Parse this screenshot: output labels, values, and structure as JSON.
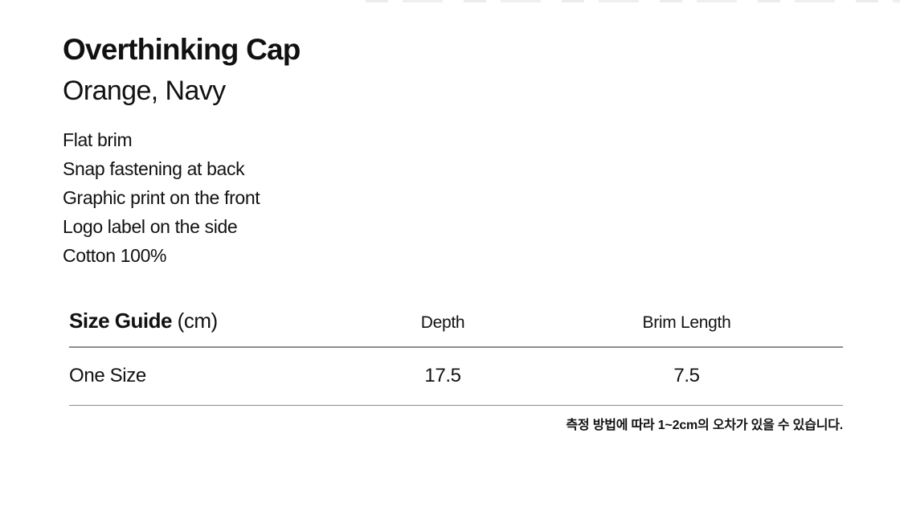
{
  "page": {
    "background_color": "#ffffff",
    "text_color": "#111111",
    "divider_color": "#8e8e8e"
  },
  "product": {
    "title": "Overthinking Cap",
    "colorway": "Orange, Navy",
    "features": [
      "Flat brim",
      "Snap fastening at back",
      "Graphic print on the front",
      "Logo label on the side",
      "Cotton 100%"
    ]
  },
  "size_guide": {
    "title": "Size Guide",
    "unit": "(cm)",
    "columns": [
      "Depth",
      "Brim Length"
    ],
    "rows": [
      {
        "label": "One Size",
        "depth": "17.5",
        "brim_length": "7.5"
      }
    ],
    "note": "측정 방법에 따라 1~2cm의 오차가 있을 수 있습니다."
  }
}
